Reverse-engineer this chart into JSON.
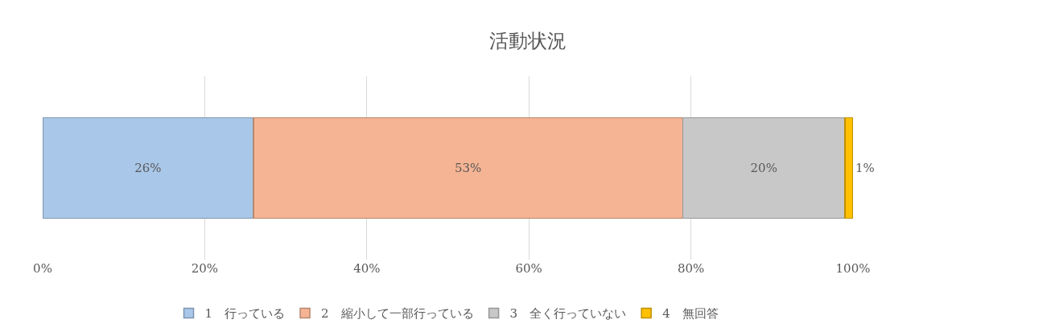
{
  "chart_data": {
    "type": "bar",
    "orientation": "horizontal",
    "stacked": true,
    "title": "活動状況",
    "categories": [
      null
    ],
    "series": [
      {
        "name": "1　行っている",
        "color": "#a9c7e8",
        "values": [
          26
        ],
        "value_labels": [
          "26%"
        ]
      },
      {
        "name": "2　縮小して一部行っている",
        "color": "#f5b494",
        "values": [
          53
        ],
        "value_labels": [
          "53%"
        ]
      },
      {
        "name": "3　全く行っていない",
        "color": "#c8c8c8",
        "values": [
          20
        ],
        "value_labels": [
          "20%"
        ]
      },
      {
        "name": "4　無回答",
        "color": "#ffc000",
        "values": [
          1
        ],
        "value_labels": [
          "1%"
        ]
      }
    ],
    "xlim": [
      0,
      100
    ],
    "xticks": [
      {
        "value": 0,
        "label": "0%"
      },
      {
        "value": 20,
        "label": "20%"
      },
      {
        "value": 40,
        "label": "40%"
      },
      {
        "value": 60,
        "label": "60%"
      },
      {
        "value": 80,
        "label": "80%"
      },
      {
        "value": 100,
        "label": "100%"
      }
    ],
    "grid": "x",
    "legend": "bottom"
  }
}
